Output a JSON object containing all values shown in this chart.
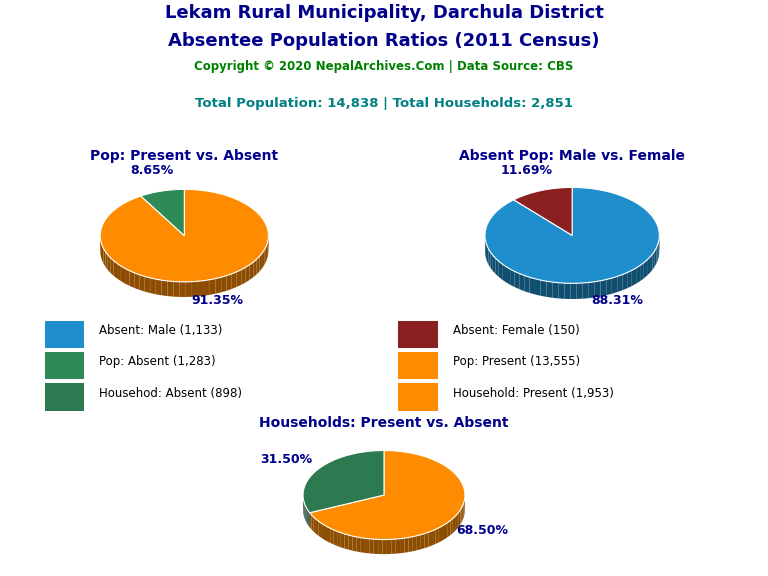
{
  "title_line1": "Lekam Rural Municipality, Darchula District",
  "title_line2": "Absentee Population Ratios (2011 Census)",
  "copyright": "Copyright © 2020 NepalArchives.Com | Data Source: CBS",
  "stats": "Total Population: 14,838 | Total Households: 2,851",
  "pie1_title": "Pop: Present vs. Absent",
  "pie1_values": [
    91.35,
    8.65
  ],
  "pie1_colors": [
    "#FF8C00",
    "#2E8B57"
  ],
  "pie1_labels": [
    "91.35%",
    "8.65%"
  ],
  "pie2_title": "Absent Pop: Male vs. Female",
  "pie2_values": [
    88.31,
    11.69
  ],
  "pie2_colors": [
    "#1E8FCC",
    "#8B2020"
  ],
  "pie2_labels": [
    "88.31%",
    "11.69%"
  ],
  "pie3_title": "Households: Present vs. Absent",
  "pie3_values": [
    68.5,
    31.5
  ],
  "pie3_colors": [
    "#FF8C00",
    "#2E7A50"
  ],
  "pie3_labels": [
    "68.50%",
    "31.50%"
  ],
  "legend_items": [
    {
      "label": "Absent: Male (1,133)",
      "color": "#1E8FCC"
    },
    {
      "label": "Absent: Female (150)",
      "color": "#8B2020"
    },
    {
      "label": "Pop: Absent (1,283)",
      "color": "#2E8B57"
    },
    {
      "label": "Pop: Present (13,555)",
      "color": "#FF8C00"
    },
    {
      "label": "Househod: Absent (898)",
      "color": "#2E7A50"
    },
    {
      "label": "Household: Present (1,953)",
      "color": "#FF8C00"
    }
  ],
  "title_color": "#00008B",
  "copyright_color": "#008000",
  "stats_color": "#008080",
  "subtitle_color": "#00008B",
  "label_color": "#00008B",
  "background_color": "#FFFFFF"
}
